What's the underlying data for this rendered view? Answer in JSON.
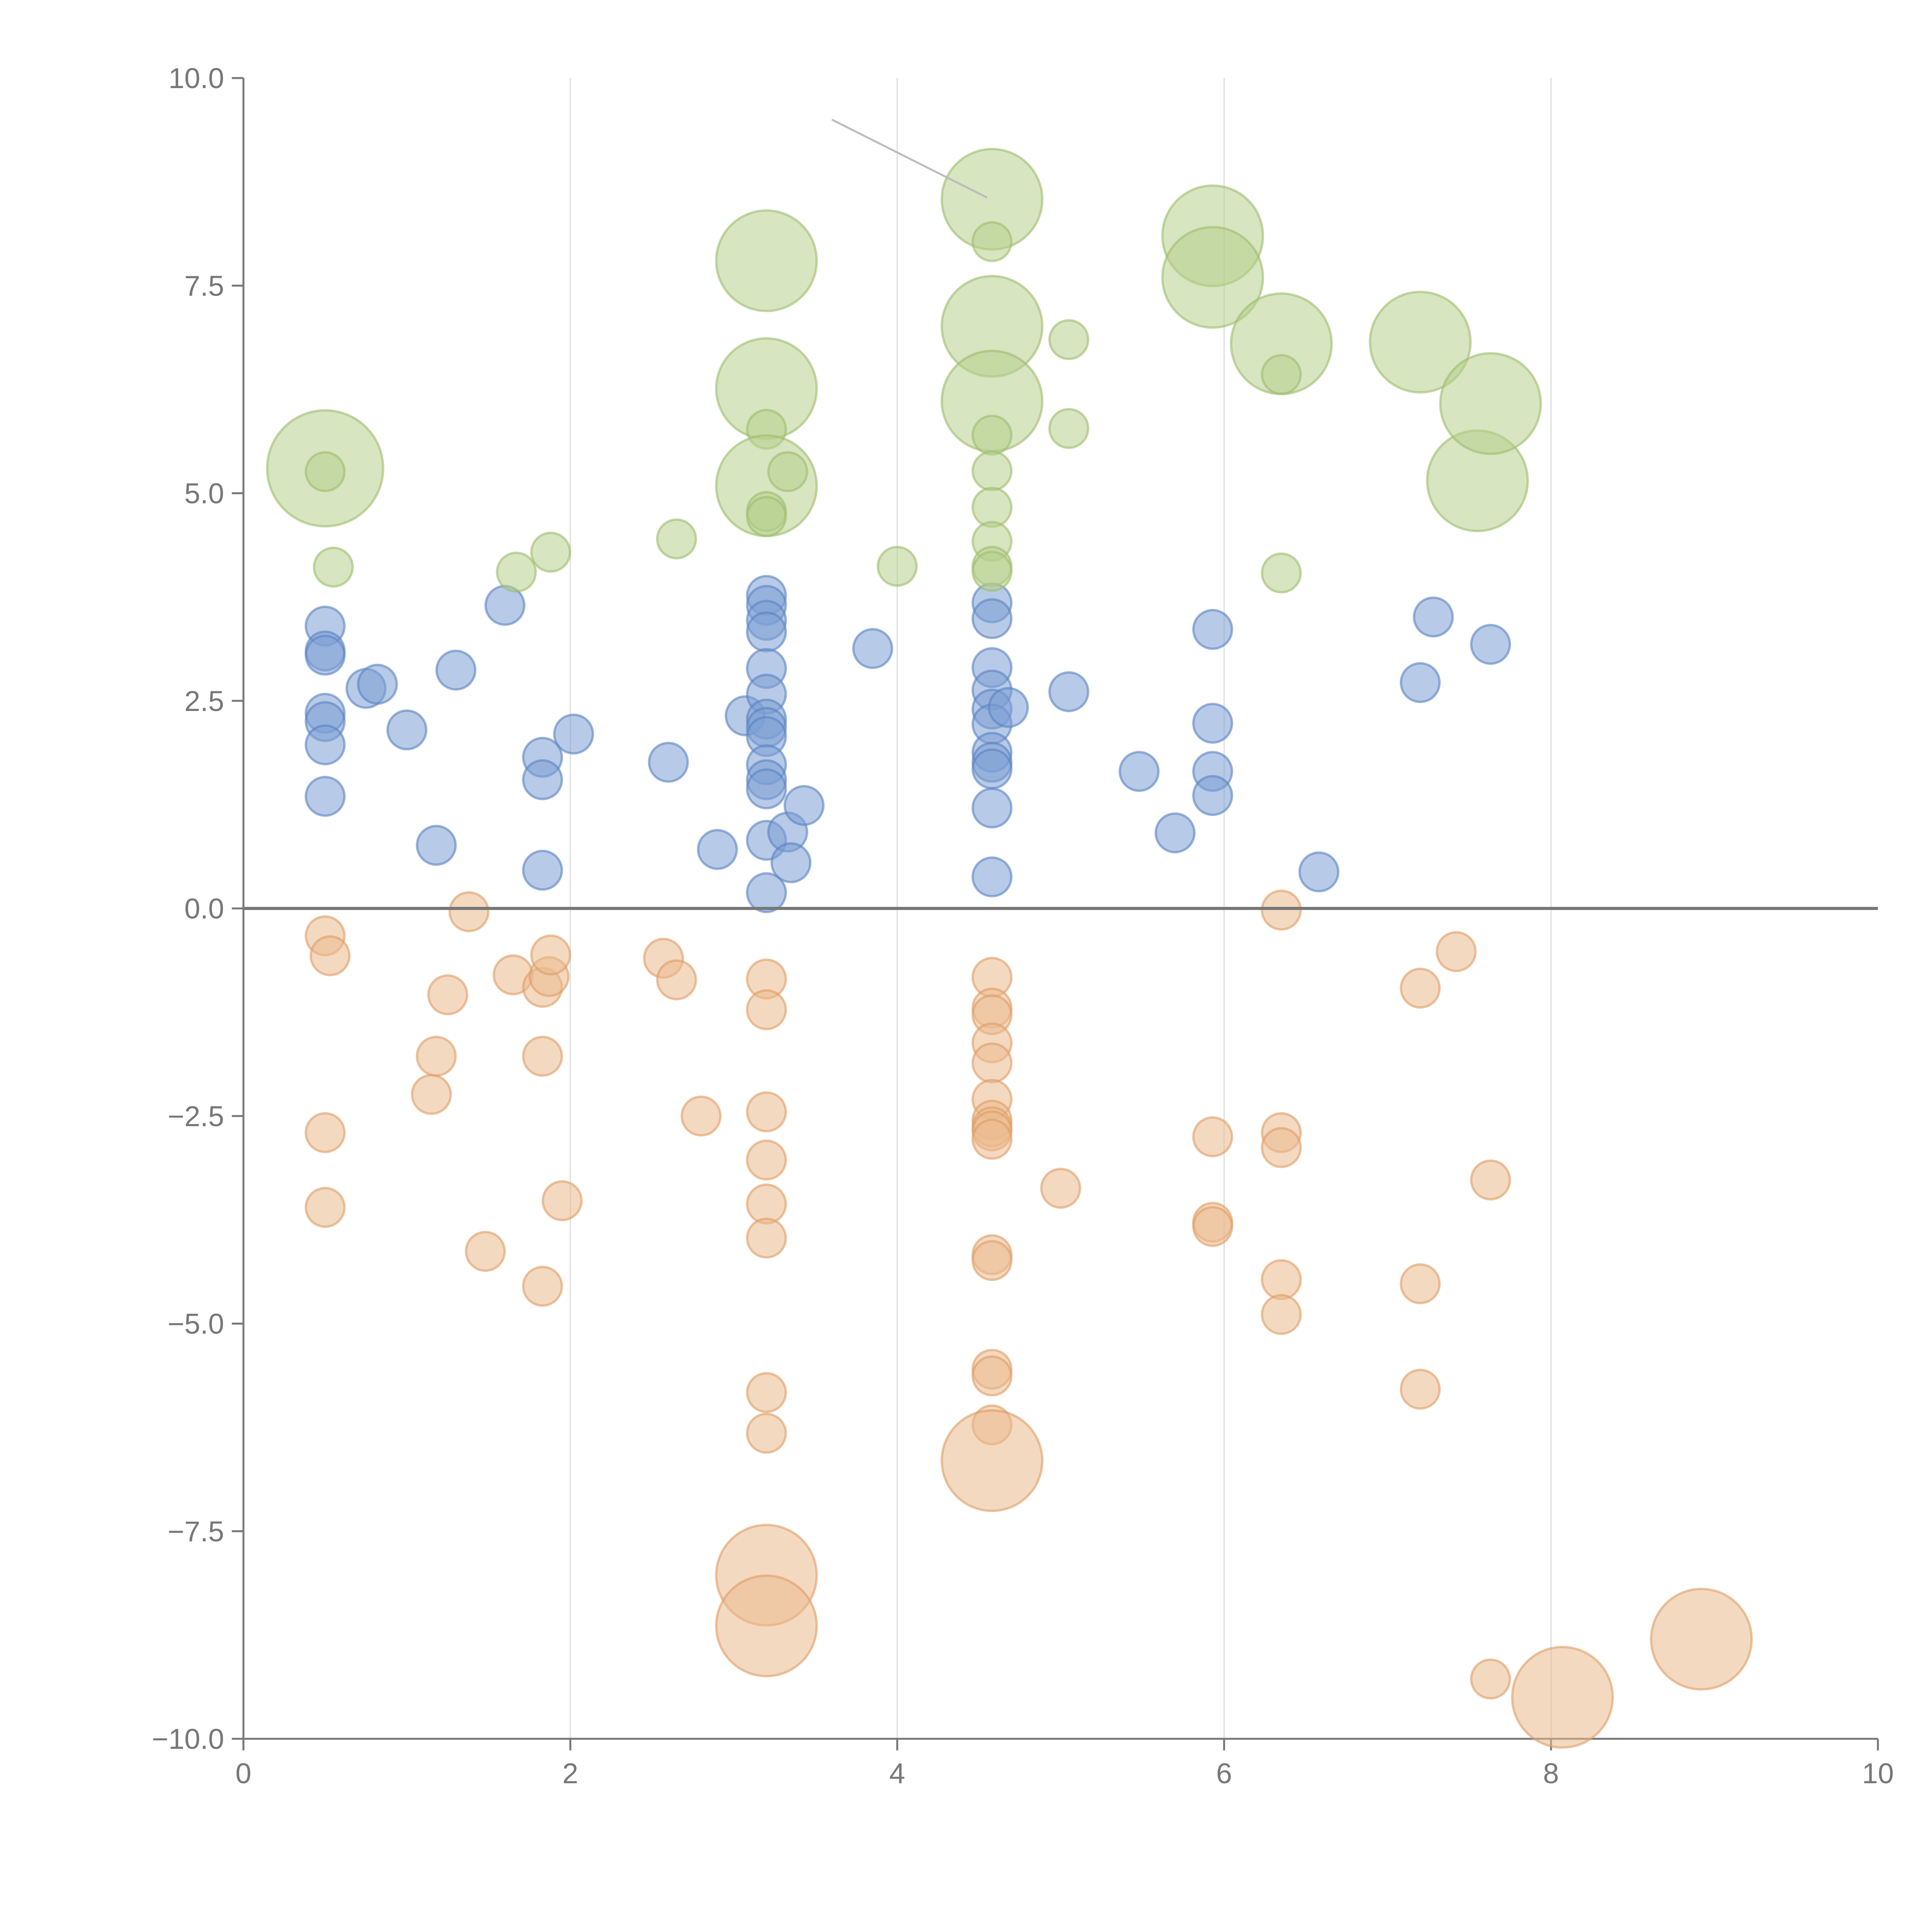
{
  "chart_data": {
    "type": "scatter",
    "title": "",
    "xlabel": "",
    "ylabel": "",
    "xlim": [
      0,
      10
    ],
    "ylim": [
      -10,
      10
    ],
    "x_ticks": [
      0,
      2,
      4,
      6,
      8,
      10
    ],
    "y_ticks": [
      -10,
      -7.5,
      -5,
      -2.5,
      0,
      2.5,
      5,
      7.5,
      10
    ],
    "x_tick_labels": [
      "0",
      "2",
      "4",
      "6",
      "8",
      "10"
    ],
    "y_tick_labels": [
      "−10.0",
      "−7.5",
      "−5.0",
      "−2.5",
      "0.0",
      "2.5",
      "5.0",
      "7.5",
      "10.0"
    ],
    "grid": {
      "vertical_at": [
        2,
        4,
        6,
        8
      ],
      "horizontal": false
    },
    "reference_line_y": 0,
    "legend": "none",
    "series": [
      {
        "color": "#7b9fd4",
        "stroke": "#5a82c2",
        "points": [
          [
            0.5,
            3.4,
            1
          ],
          [
            0.5,
            3.1,
            1
          ],
          [
            0.5,
            3.05,
            1
          ],
          [
            0.5,
            2.35,
            1
          ],
          [
            0.5,
            2.25,
            1
          ],
          [
            0.5,
            1.97,
            1
          ],
          [
            0.5,
            1.35,
            1
          ],
          [
            0.75,
            2.65,
            1
          ],
          [
            0.82,
            2.7,
            1
          ],
          [
            1.0,
            2.15,
            1
          ],
          [
            1.18,
            0.76,
            1
          ],
          [
            1.3,
            2.87,
            1
          ],
          [
            1.6,
            3.65,
            1
          ],
          [
            1.83,
            1.82,
            1
          ],
          [
            1.83,
            1.55,
            1
          ],
          [
            1.83,
            0.46,
            1
          ],
          [
            2.02,
            2.1,
            1
          ],
          [
            2.6,
            1.76,
            1
          ],
          [
            2.9,
            0.71,
            1
          ],
          [
            3.07,
            2.32,
            1
          ],
          [
            3.2,
            3.77,
            1
          ],
          [
            3.2,
            3.65,
            1
          ],
          [
            3.2,
            3.47,
            1
          ],
          [
            3.2,
            3.33,
            1
          ],
          [
            3.2,
            2.89,
            1
          ],
          [
            3.2,
            2.58,
            1
          ],
          [
            3.2,
            2.28,
            1
          ],
          [
            3.2,
            2.18,
            1
          ],
          [
            3.2,
            2.07,
            1
          ],
          [
            3.2,
            1.73,
            1
          ],
          [
            3.2,
            1.55,
            1
          ],
          [
            3.2,
            1.44,
            1
          ],
          [
            3.2,
            0.82,
            1
          ],
          [
            3.2,
            0.19,
            1
          ],
          [
            3.33,
            0.92,
            1
          ],
          [
            3.35,
            0.55,
            1
          ],
          [
            3.43,
            1.24,
            1
          ],
          [
            3.85,
            3.13,
            1
          ],
          [
            4.58,
            3.68,
            1
          ],
          [
            4.58,
            3.49,
            1
          ],
          [
            4.58,
            2.9,
            1
          ],
          [
            4.58,
            2.63,
            1
          ],
          [
            4.58,
            2.4,
            1
          ],
          [
            4.58,
            2.22,
            1
          ],
          [
            4.58,
            1.88,
            1
          ],
          [
            4.58,
            1.76,
            1
          ],
          [
            4.58,
            1.68,
            1
          ],
          [
            4.58,
            1.21,
            1
          ],
          [
            4.58,
            0.38,
            1
          ],
          [
            4.68,
            2.42,
            1
          ],
          [
            5.05,
            2.61,
            1
          ],
          [
            5.48,
            1.65,
            1
          ],
          [
            5.7,
            0.91,
            1
          ],
          [
            5.93,
            3.36,
            1
          ],
          [
            5.93,
            2.23,
            1
          ],
          [
            5.93,
            1.65,
            1
          ],
          [
            5.93,
            1.36,
            1
          ],
          [
            6.58,
            0.44,
            1
          ],
          [
            7.2,
            2.72,
            1
          ],
          [
            7.28,
            3.51,
            1
          ],
          [
            7.63,
            3.18,
            1
          ]
        ]
      },
      {
        "color": "#b7d08c",
        "stroke": "#9cbd6c",
        "points": [
          [
            0.5,
            5.3,
            3
          ],
          [
            0.5,
            5.26,
            1
          ],
          [
            0.55,
            4.11,
            1
          ],
          [
            1.67,
            4.05,
            1
          ],
          [
            1.88,
            4.29,
            1
          ],
          [
            2.65,
            4.45,
            1
          ],
          [
            3.2,
            7.8,
            2.6
          ],
          [
            3.2,
            6.26,
            2.6
          ],
          [
            3.2,
            5.77,
            1
          ],
          [
            3.2,
            5.09,
            2.6
          ],
          [
            3.2,
            4.78,
            1
          ],
          [
            3.2,
            4.72,
            1
          ],
          [
            3.33,
            5.26,
            1
          ],
          [
            4.0,
            4.12,
            1
          ],
          [
            4.58,
            8.54,
            2.6
          ],
          [
            4.58,
            8.03,
            1
          ],
          [
            4.58,
            7.01,
            2.6
          ],
          [
            4.58,
            6.11,
            2.6
          ],
          [
            4.58,
            5.7,
            1
          ],
          [
            4.58,
            5.27,
            1
          ],
          [
            4.58,
            4.83,
            1
          ],
          [
            4.58,
            4.42,
            1
          ],
          [
            4.58,
            4.12,
            1
          ],
          [
            4.58,
            4.06,
            1
          ],
          [
            5.05,
            6.85,
            1
          ],
          [
            5.05,
            5.78,
            1
          ],
          [
            5.93,
            8.1,
            2.6
          ],
          [
            5.93,
            7.6,
            2.6
          ],
          [
            6.35,
            6.8,
            2.6
          ],
          [
            6.35,
            6.43,
            1
          ],
          [
            6.35,
            4.04,
            1
          ],
          [
            7.2,
            6.82,
            2.6
          ],
          [
            7.55,
            5.15,
            2.6
          ],
          [
            7.63,
            6.08,
            2.6
          ]
        ]
      },
      {
        "color": "#ebb98e",
        "stroke": "#de9c64",
        "points": [
          [
            0.5,
            -0.33,
            1
          ],
          [
            0.53,
            -0.57,
            1
          ],
          [
            0.5,
            -2.7,
            1
          ],
          [
            0.5,
            -3.6,
            1
          ],
          [
            1.15,
            -2.24,
            1
          ],
          [
            1.18,
            -1.78,
            1
          ],
          [
            1.25,
            -1.04,
            1
          ],
          [
            1.38,
            -0.04,
            1
          ],
          [
            1.48,
            -4.13,
            1
          ],
          [
            1.65,
            -0.8,
            1
          ],
          [
            1.83,
            -0.95,
            1
          ],
          [
            1.87,
            -0.82,
            1
          ],
          [
            1.88,
            -0.56,
            1
          ],
          [
            1.83,
            -1.78,
            1
          ],
          [
            1.83,
            -4.55,
            1
          ],
          [
            1.95,
            -3.52,
            1
          ],
          [
            2.57,
            -0.6,
            1
          ],
          [
            2.65,
            -0.86,
            1
          ],
          [
            2.8,
            -2.5,
            1
          ],
          [
            3.2,
            -0.85,
            1
          ],
          [
            3.2,
            -1.22,
            1
          ],
          [
            3.2,
            -2.45,
            1
          ],
          [
            3.2,
            -3.03,
            1
          ],
          [
            3.2,
            -3.56,
            1
          ],
          [
            3.2,
            -3.97,
            1
          ],
          [
            3.2,
            -5.83,
            1
          ],
          [
            3.2,
            -6.32,
            1
          ],
          [
            3.2,
            -8.03,
            2.6
          ],
          [
            3.2,
            -8.64,
            2.6
          ],
          [
            4.58,
            -0.83,
            1
          ],
          [
            4.58,
            -1.2,
            1
          ],
          [
            4.58,
            -1.28,
            1
          ],
          [
            4.58,
            -1.62,
            1
          ],
          [
            4.58,
            -1.86,
            1
          ],
          [
            4.58,
            -2.3,
            1
          ],
          [
            4.58,
            -2.55,
            1
          ],
          [
            4.58,
            -2.63,
            1
          ],
          [
            4.58,
            -2.68,
            1
          ],
          [
            4.58,
            -2.78,
            1
          ],
          [
            4.58,
            -4.17,
            1
          ],
          [
            4.58,
            -4.24,
            1
          ],
          [
            4.58,
            -5.55,
            1
          ],
          [
            4.58,
            -5.63,
            1
          ],
          [
            4.58,
            -6.22,
            1
          ],
          [
            4.58,
            -6.65,
            2.6
          ],
          [
            5.0,
            -3.37,
            1
          ],
          [
            5.93,
            -2.75,
            1
          ],
          [
            5.93,
            -3.78,
            1
          ],
          [
            5.93,
            -3.83,
            1
          ],
          [
            6.35,
            -0.02,
            1
          ],
          [
            6.35,
            -2.7,
            1
          ],
          [
            6.35,
            -2.88,
            1
          ],
          [
            6.35,
            -4.47,
            1
          ],
          [
            6.35,
            -4.89,
            1
          ],
          [
            7.2,
            -0.96,
            1
          ],
          [
            7.2,
            -4.52,
            1
          ],
          [
            7.2,
            -5.79,
            1
          ],
          [
            7.42,
            -0.52,
            1
          ],
          [
            7.63,
            -3.27,
            1
          ],
          [
            7.63,
            -9.28,
            1
          ],
          [
            8.07,
            -9.5,
            2.6
          ],
          [
            8.92,
            -8.8,
            2.6
          ]
        ]
      }
    ],
    "annotation_leaders": [
      {
        "from": [
          3.6,
          9.5
        ],
        "to": [
          4.55,
          8.56
        ],
        "color": "#bbbbbb"
      }
    ]
  }
}
